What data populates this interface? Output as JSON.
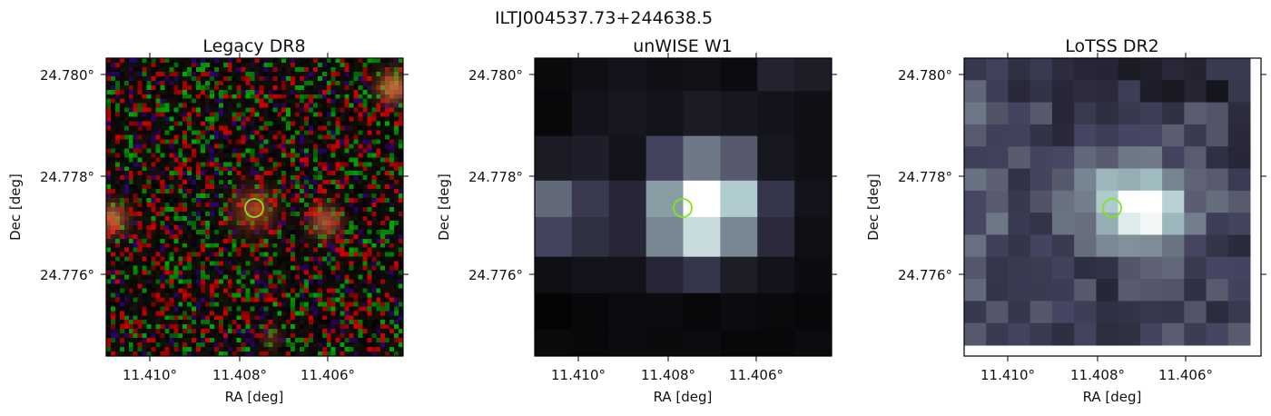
{
  "figure": {
    "title": "ILTJ004537.73+244638.5"
  },
  "panels": [
    {
      "title": "Legacy DR8",
      "xlabel": "RA [deg]",
      "ylabel": "Dec [deg]",
      "xticks": [
        "11.410°",
        "11.408°",
        "11.406°"
      ],
      "yticks": [
        "24.780°",
        "24.778°",
        "24.776°"
      ],
      "colormap": "rgb-noise",
      "marker": {
        "ra": 11.4077,
        "dec": 24.7774,
        "color": "#7fe61e"
      }
    },
    {
      "title": "unWISE W1",
      "xlabel": "RA [deg]",
      "ylabel": "Dec [deg]",
      "xticks": [
        "11.410°",
        "11.408°",
        "11.406°"
      ],
      "yticks": [
        "24.780°",
        "24.778°",
        "24.776°"
      ],
      "colormap": "bone",
      "marker": {
        "ra": 11.4077,
        "dec": 24.7774,
        "color": "#7fe61e"
      }
    },
    {
      "title": "LoTSS DR2",
      "xlabel": "RA [deg]",
      "ylabel": "Dec [deg]",
      "xticks": [
        "11.410°",
        "11.408°",
        "11.406°"
      ],
      "yticks": [
        "24.780°",
        "24.778°",
        "24.776°"
      ],
      "colormap": "bone",
      "marker": {
        "ra": 11.4077,
        "dec": 24.7774,
        "color": "#7fe61e"
      }
    }
  ]
}
